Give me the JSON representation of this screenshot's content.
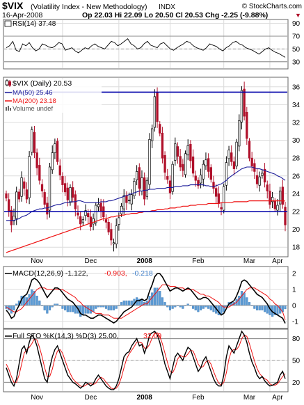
{
  "header": {
    "symbol": "$VIX",
    "name": "(Volatility Index - New Methodology)",
    "exchange": "INDX",
    "watermark": "© StockCharts.com",
    "date": "16-Apr-2008",
    "quote": "Op 22.03  Hi 22.09  Lo 20.50  Cl 20.53  Chg -2.25 (-9.88%)",
    "chg_marker": "▼"
  },
  "colors": {
    "price_up": "#000000",
    "price_down": "#b0102a",
    "ma50": "#1a1a99",
    "ma200": "#ee1111",
    "hline": "#0000aa",
    "macd_hist": "#5b9bd5",
    "signal": "#ee1111",
    "rsi": "#000000"
  },
  "panels": {
    "rsi": {
      "label": "RSI(14) 37.48"
    },
    "price": {
      "label": "$VIX (Daily) 20.53",
      "ma50_label": "MA(50) 25.46",
      "ma200_label": "MA(200) 23.18",
      "volume_label": "Volume undef"
    },
    "macd": {
      "label_main": "MACD(12,26,9) -1.122,",
      "label_signal": "-0.903,",
      "label_hist": "-0.218"
    },
    "sto": {
      "label_main": "Full STO %K(14,3) %D(3) 25.00,",
      "label_d": "32.09"
    }
  },
  "x_axis": {
    "months": [
      "Nov",
      "Dec",
      "2008",
      "Feb",
      "Mar",
      "Apr"
    ]
  },
  "chart_data": [
    {
      "type": "line",
      "name": "rsi",
      "ylim": [
        20,
        95
      ],
      "y_ticks": [
        30,
        50,
        70,
        90
      ],
      "ref_lines": [
        30,
        70
      ],
      "values": [
        52,
        55,
        62,
        48,
        46,
        58,
        55,
        60,
        52,
        47,
        50,
        58,
        56,
        53,
        52,
        55,
        60,
        58,
        48,
        50,
        52,
        47,
        44,
        48,
        52,
        50,
        55,
        58,
        54,
        52,
        50,
        56,
        62,
        60,
        55,
        58,
        62,
        66,
        58,
        55,
        50,
        52,
        58,
        62,
        56,
        54,
        52,
        58,
        60,
        55,
        50,
        48,
        52,
        55,
        58,
        62,
        60,
        55,
        52,
        50,
        48,
        52,
        58,
        56,
        54,
        50,
        47,
        52,
        55,
        60,
        62,
        58,
        56,
        52,
        50,
        48,
        45,
        42,
        46,
        50,
        52,
        48,
        45,
        43,
        40,
        37
      ]
    },
    {
      "type": "candlestick",
      "name": "price",
      "ylim": [
        17,
        37
      ],
      "y_ticks": [
        18,
        20,
        22,
        24,
        26,
        28,
        30,
        32,
        34,
        36
      ],
      "hlines": [
        35.4,
        22.0
      ],
      "close": [
        23.5,
        22.0,
        20.5,
        21.5,
        24.2,
        23.4,
        25.8,
        24.6,
        23.4,
        28.2,
        31.2,
        28.6,
        26.9,
        25.5,
        24.3,
        22.8,
        21.7,
        27.0,
        28.6,
        29.6,
        27.6,
        26.1,
        25.0,
        24.2,
        23.3,
        24.7,
        23.6,
        22.3,
        21.6,
        20.6,
        21.1,
        22.1,
        21.4,
        20.3,
        21.2,
        22.7,
        22.8,
        22.1,
        21.4,
        20.8,
        19.7,
        18.8,
        18.5,
        20.4,
        21.3,
        22.6,
        23.8,
        23.0,
        23.3,
        23.9,
        25.4,
        26.5,
        24.6,
        25.8,
        23.4,
        25.5,
        30.1,
        31.3,
        34.9,
        32.1,
        30.8,
        28.0,
        26.4,
        25.6,
        24.1,
        27.3,
        29.6,
        28.2,
        27.0,
        26.6,
        28.5,
        29.4,
        27.7,
        26.3,
        25.5,
        24.9,
        26.1,
        27.3,
        27.8,
        26.5,
        25.6,
        24.6,
        23.7,
        22.9,
        22.3,
        24.8,
        27.5,
        28.9,
        27.6,
        26.8,
        29.8,
        32.2,
        35.6,
        32.7,
        30.2,
        28.0,
        27.1,
        26.5,
        25.1,
        25.9,
        26.3,
        25.3,
        24.3,
        22.8,
        23.6,
        22.3,
        22.7,
        24.3,
        22.8,
        20.5
      ],
      "ma50": [
        21.0,
        21.0,
        21.0,
        21.0,
        21.1,
        21.2,
        21.4,
        21.5,
        21.6,
        21.8,
        22.0,
        22.1,
        22.2,
        22.3,
        22.3,
        22.4,
        22.4,
        22.5,
        22.6,
        22.7,
        22.8,
        22.8,
        22.9,
        23.0,
        23.0,
        23.1,
        23.1,
        23.1,
        23.2,
        23.2,
        23.1,
        23.0,
        23.0,
        23.0,
        23.0,
        23.0,
        23.0,
        23.1,
        23.1,
        23.1,
        23.2,
        23.2,
        23.3,
        23.4,
        23.5,
        23.6,
        23.7,
        23.8,
        23.9,
        24.0,
        24.1,
        24.2,
        24.3,
        24.3,
        24.4,
        24.4,
        24.5,
        24.5,
        24.5,
        24.6,
        24.6,
        24.6,
        24.6,
        24.7,
        24.7,
        24.7,
        24.8,
        24.8,
        24.8,
        24.9,
        24.9,
        24.9,
        25.0,
        25.0,
        25.0,
        25.0,
        25.0,
        25.0,
        24.9,
        24.9,
        24.8,
        24.8,
        24.9,
        25.0,
        25.1,
        25.3,
        25.5,
        25.8,
        26.0,
        26.2,
        26.4,
        26.6,
        26.8,
        26.9,
        27.0,
        27.0,
        27.0,
        26.9,
        26.8,
        26.8,
        26.7,
        26.6,
        26.5,
        26.4,
        26.3,
        26.2,
        26.0,
        25.9,
        25.7,
        25.5
      ],
      "ma200": [
        17.4,
        17.5,
        17.6,
        17.7,
        17.8,
        17.9,
        18.0,
        18.1,
        18.2,
        18.3,
        18.4,
        18.5,
        18.6,
        18.7,
        18.8,
        18.9,
        19.0,
        19.1,
        19.2,
        19.3,
        19.4,
        19.5,
        19.6,
        19.7,
        19.8,
        19.9,
        20.0,
        20.1,
        20.2,
        20.3,
        20.4,
        20.5,
        20.6,
        20.7,
        20.8,
        20.9,
        21.0,
        21.1,
        21.2,
        21.2,
        21.3,
        21.4,
        21.4,
        21.5,
        21.5,
        21.6,
        21.6,
        21.7,
        21.7,
        21.8,
        21.8,
        21.8,
        21.9,
        21.9,
        22.0,
        22.0,
        22.0,
        22.1,
        22.1,
        22.2,
        22.2,
        22.2,
        22.3,
        22.3,
        22.4,
        22.4,
        22.4,
        22.5,
        22.5,
        22.6,
        22.6,
        22.6,
        22.7,
        22.7,
        22.7,
        22.8,
        22.8,
        22.8,
        22.8,
        22.9,
        22.9,
        22.9,
        22.9,
        22.9,
        23.0,
        23.0,
        23.0,
        23.0,
        23.0,
        23.1,
        23.1,
        23.1,
        23.1,
        23.1,
        23.1,
        23.2,
        23.2,
        23.2,
        23.2,
        23.2,
        23.2,
        23.2,
        23.2,
        23.2,
        23.2,
        23.2,
        23.2,
        23.2,
        23.2,
        23.18
      ]
    },
    {
      "type": "line+histogram",
      "name": "macd",
      "ylim": [
        -1.4,
        2.4
      ],
      "y_ticks": [
        -1,
        0,
        1,
        2
      ],
      "macd": [
        -0.3,
        -0.5,
        -0.8,
        -0.7,
        -0.3,
        0.0,
        0.4,
        0.6,
        0.7,
        1.1,
        1.6,
        1.7,
        1.6,
        1.4,
        1.1,
        0.8,
        0.5,
        0.7,
        0.9,
        1.1,
        1.1,
        1.0,
        0.8,
        0.6,
        0.4,
        0.3,
        0.2,
        0.0,
        -0.2,
        -0.5,
        -0.6,
        -0.6,
        -0.7,
        -0.8,
        -0.8,
        -0.7,
        -0.6,
        -0.6,
        -0.7,
        -0.8,
        -0.9,
        -1.0,
        -1.1,
        -1.0,
        -0.8,
        -0.6,
        -0.4,
        -0.3,
        -0.2,
        -0.1,
        0.1,
        0.3,
        0.3,
        0.4,
        0.3,
        0.4,
        0.9,
        1.3,
        1.8,
        2.0,
        2.0,
        1.8,
        1.5,
        1.2,
        0.9,
        1.0,
        1.1,
        1.1,
        1.0,
        0.9,
        1.0,
        1.1,
        1.0,
        0.8,
        0.6,
        0.4,
        0.4,
        0.5,
        0.5,
        0.4,
        0.2,
        0.0,
        -0.2,
        -0.4,
        -0.6,
        -0.5,
        -0.2,
        0.1,
        0.2,
        0.3,
        0.6,
        1.0,
        1.5,
        1.6,
        1.5,
        1.3,
        1.1,
        0.9,
        0.7,
        0.6,
        0.5,
        0.3,
        0.1,
        -0.2,
        -0.4,
        -0.5,
        -0.6,
        -0.7,
        -0.8,
        -1.12
      ],
      "signal": [
        -0.1,
        -0.2,
        -0.3,
        -0.4,
        -0.4,
        -0.3,
        -0.2,
        0.0,
        0.2,
        0.4,
        0.6,
        0.8,
        1.0,
        1.1,
        1.1,
        1.1,
        1.0,
        1.0,
        1.0,
        1.0,
        1.0,
        1.0,
        1.0,
        0.9,
        0.8,
        0.7,
        0.6,
        0.5,
        0.3,
        0.2,
        0.0,
        -0.1,
        -0.2,
        -0.3,
        -0.4,
        -0.5,
        -0.5,
        -0.5,
        -0.6,
        -0.6,
        -0.6,
        -0.7,
        -0.8,
        -0.8,
        -0.8,
        -0.8,
        -0.7,
        -0.6,
        -0.5,
        -0.4,
        -0.3,
        -0.2,
        -0.1,
        0.0,
        0.1,
        0.1,
        0.3,
        0.5,
        0.7,
        0.9,
        1.1,
        1.3,
        1.3,
        1.3,
        1.2,
        1.2,
        1.2,
        1.1,
        1.1,
        1.1,
        1.0,
        1.0,
        1.0,
        1.0,
        0.9,
        0.8,
        0.7,
        0.7,
        0.6,
        0.6,
        0.5,
        0.4,
        0.3,
        0.2,
        0.0,
        -0.1,
        -0.1,
        -0.1,
        0.0,
        0.1,
        0.2,
        0.4,
        0.6,
        0.8,
        1.0,
        1.1,
        1.1,
        1.1,
        1.0,
        0.9,
        0.8,
        0.7,
        0.6,
        0.4,
        0.3,
        0.1,
        0.0,
        -0.2,
        -0.4,
        -0.9
      ]
    },
    {
      "type": "line",
      "name": "sto",
      "ylim": [
        8,
        92
      ],
      "y_ticks": [
        20,
        50,
        80
      ],
      "ref_lines": [
        20,
        80
      ],
      "k": [
        40,
        30,
        20,
        15,
        25,
        45,
        65,
        70,
        60,
        75,
        85,
        80,
        70,
        55,
        40,
        25,
        20,
        40,
        55,
        65,
        70,
        60,
        50,
        40,
        30,
        25,
        20,
        18,
        15,
        12,
        15,
        20,
        18,
        15,
        18,
        25,
        30,
        25,
        20,
        15,
        12,
        10,
        10,
        15,
        25,
        40,
        55,
        60,
        62,
        70,
        75,
        80,
        70,
        72,
        60,
        70,
        85,
        88,
        90,
        85,
        75,
        60,
        45,
        35,
        25,
        40,
        55,
        60,
        55,
        50,
        60,
        68,
        65,
        55,
        45,
        35,
        40,
        50,
        55,
        45,
        35,
        25,
        18,
        15,
        15,
        30,
        55,
        70,
        65,
        60,
        70,
        80,
        90,
        85,
        75,
        60,
        48,
        40,
        30,
        25,
        28,
        22,
        18,
        15,
        16,
        18,
        20,
        30,
        35,
        25
      ],
      "d": [
        45,
        38,
        28,
        20,
        20,
        30,
        45,
        60,
        65,
        68,
        73,
        80,
        78,
        68,
        55,
        40,
        28,
        28,
        38,
        53,
        63,
        65,
        60,
        50,
        40,
        32,
        25,
        21,
        18,
        15,
        14,
        16,
        18,
        18,
        17,
        19,
        24,
        27,
        25,
        20,
        16,
        12,
        11,
        12,
        17,
        27,
        40,
        52,
        59,
        64,
        69,
        75,
        75,
        74,
        67,
        67,
        72,
        81,
        88,
        88,
        83,
        73,
        60,
        47,
        35,
        33,
        40,
        52,
        57,
        55,
        55,
        59,
        64,
        63,
        55,
        45,
        40,
        42,
        48,
        50,
        45,
        35,
        26,
        19,
        16,
        20,
        33,
        52,
        63,
        65,
        65,
        70,
        80,
        85,
        83,
        73,
        61,
        49,
        39,
        32,
        28,
        25,
        23,
        18,
        16,
        16,
        18,
        23,
        28,
        32.09
      ]
    }
  ]
}
